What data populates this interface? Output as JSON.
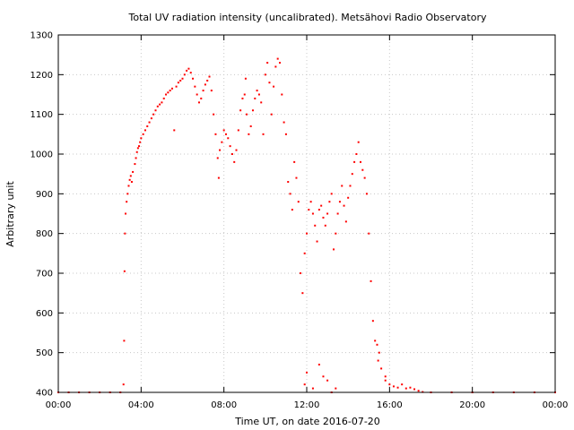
{
  "chart_data": {
    "type": "scatter",
    "title": "Total UV radiation intensity (uncalibrated). Metsähovi Radio Observatory",
    "xlabel": "Time UT, on date 2016-07-20",
    "ylabel": "Arbitrary unit",
    "x_unit": "hours UT",
    "xlim": [
      0,
      24
    ],
    "ylim": [
      400,
      1300
    ],
    "x_ticks": [
      {
        "value": 0,
        "label": "00:00"
      },
      {
        "value": 4,
        "label": "04:00"
      },
      {
        "value": 8,
        "label": "08:00"
      },
      {
        "value": 12,
        "label": "12:00"
      },
      {
        "value": 16,
        "label": "16:00"
      },
      {
        "value": 20,
        "label": "20:00"
      },
      {
        "value": 24,
        "label": "00:00"
      }
    ],
    "y_ticks": [
      400,
      500,
      600,
      700,
      800,
      900,
      1000,
      1100,
      1200,
      1300
    ],
    "grid": true,
    "marker_color": "#ff0000",
    "series": [
      {
        "points": [
          [
            0.0,
            400
          ],
          [
            0.5,
            400
          ],
          [
            1.0,
            400
          ],
          [
            1.5,
            400
          ],
          [
            2.0,
            400
          ],
          [
            2.5,
            400
          ],
          [
            3.0,
            400
          ],
          [
            3.15,
            420
          ],
          [
            3.18,
            530
          ],
          [
            3.2,
            705
          ],
          [
            3.22,
            800
          ],
          [
            3.25,
            850
          ],
          [
            3.3,
            880
          ],
          [
            3.35,
            900
          ],
          [
            3.4,
            920
          ],
          [
            3.45,
            935
          ],
          [
            3.5,
            945
          ],
          [
            3.55,
            930
          ],
          [
            3.6,
            955
          ],
          [
            3.7,
            975
          ],
          [
            3.75,
            990
          ],
          [
            3.8,
            1005
          ],
          [
            3.85,
            1015
          ],
          [
            3.9,
            1020
          ],
          [
            3.95,
            1030
          ],
          [
            4.0,
            1040
          ],
          [
            4.1,
            1050
          ],
          [
            4.2,
            1060
          ],
          [
            4.3,
            1070
          ],
          [
            4.4,
            1080
          ],
          [
            4.5,
            1090
          ],
          [
            4.6,
            1100
          ],
          [
            4.7,
            1110
          ],
          [
            4.8,
            1120
          ],
          [
            4.9,
            1125
          ],
          [
            5.0,
            1130
          ],
          [
            5.1,
            1140
          ],
          [
            5.2,
            1150
          ],
          [
            5.3,
            1155
          ],
          [
            5.4,
            1160
          ],
          [
            5.5,
            1165
          ],
          [
            5.6,
            1060
          ],
          [
            5.7,
            1170
          ],
          [
            5.8,
            1180
          ],
          [
            5.9,
            1185
          ],
          [
            6.0,
            1190
          ],
          [
            6.1,
            1200
          ],
          [
            6.2,
            1210
          ],
          [
            6.3,
            1215
          ],
          [
            6.4,
            1205
          ],
          [
            6.5,
            1190
          ],
          [
            6.6,
            1170
          ],
          [
            6.7,
            1150
          ],
          [
            6.8,
            1130
          ],
          [
            6.9,
            1140
          ],
          [
            7.0,
            1160
          ],
          [
            7.1,
            1175
          ],
          [
            7.2,
            1185
          ],
          [
            7.3,
            1195
          ],
          [
            7.4,
            1160
          ],
          [
            7.5,
            1100
          ],
          [
            7.6,
            1050
          ],
          [
            7.7,
            990
          ],
          [
            7.75,
            940
          ],
          [
            7.8,
            1010
          ],
          [
            7.9,
            1030
          ],
          [
            8.0,
            1060
          ],
          [
            8.1,
            1050
          ],
          [
            8.2,
            1040
          ],
          [
            8.3,
            1020
          ],
          [
            8.4,
            1000
          ],
          [
            8.5,
            980
          ],
          [
            8.6,
            1010
          ],
          [
            8.7,
            1060
          ],
          [
            8.8,
            1110
          ],
          [
            8.9,
            1140
          ],
          [
            9.0,
            1150
          ],
          [
            9.05,
            1190
          ],
          [
            9.1,
            1100
          ],
          [
            9.2,
            1050
          ],
          [
            9.3,
            1070
          ],
          [
            9.4,
            1110
          ],
          [
            9.5,
            1140
          ],
          [
            9.6,
            1160
          ],
          [
            9.7,
            1150
          ],
          [
            9.8,
            1130
          ],
          [
            9.9,
            1050
          ],
          [
            10.0,
            1200
          ],
          [
            10.1,
            1230
          ],
          [
            10.2,
            1180
          ],
          [
            10.3,
            1100
          ],
          [
            10.4,
            1170
          ],
          [
            10.5,
            1220
          ],
          [
            10.6,
            1240
          ],
          [
            10.7,
            1230
          ],
          [
            10.8,
            1150
          ],
          [
            10.9,
            1080
          ],
          [
            11.0,
            1050
          ],
          [
            11.1,
            930
          ],
          [
            11.2,
            900
          ],
          [
            11.3,
            860
          ],
          [
            11.4,
            980
          ],
          [
            11.5,
            940
          ],
          [
            11.6,
            880
          ],
          [
            11.7,
            700
          ],
          [
            11.8,
            650
          ],
          [
            11.9,
            750
          ],
          [
            12.0,
            800
          ],
          [
            12.1,
            860
          ],
          [
            12.2,
            880
          ],
          [
            12.3,
            850
          ],
          [
            12.4,
            820
          ],
          [
            12.5,
            780
          ],
          [
            12.6,
            860
          ],
          [
            12.7,
            870
          ],
          [
            12.8,
            840
          ],
          [
            12.9,
            820
          ],
          [
            13.0,
            850
          ],
          [
            13.1,
            880
          ],
          [
            13.2,
            900
          ],
          [
            13.3,
            760
          ],
          [
            13.4,
            800
          ],
          [
            13.5,
            850
          ],
          [
            13.6,
            880
          ],
          [
            13.7,
            920
          ],
          [
            13.8,
            870
          ],
          [
            13.9,
            830
          ],
          [
            14.0,
            890
          ],
          [
            14.1,
            920
          ],
          [
            14.2,
            950
          ],
          [
            14.3,
            980
          ],
          [
            14.4,
            1000
          ],
          [
            14.5,
            1030
          ],
          [
            14.6,
            980
          ],
          [
            14.7,
            960
          ],
          [
            14.8,
            940
          ],
          [
            14.9,
            900
          ],
          [
            15.0,
            800
          ],
          [
            15.1,
            680
          ],
          [
            15.2,
            580
          ],
          [
            15.3,
            530
          ],
          [
            15.4,
            520
          ],
          [
            15.5,
            500
          ],
          [
            15.6,
            460
          ],
          [
            15.8,
            430
          ],
          [
            16.0,
            420
          ],
          [
            16.2,
            415
          ],
          [
            16.4,
            412
          ],
          [
            16.6,
            420
          ],
          [
            16.8,
            410
          ],
          [
            17.0,
            412
          ],
          [
            17.2,
            408
          ],
          [
            17.4,
            404
          ],
          [
            17.6,
            401
          ],
          [
            18.0,
            400
          ],
          [
            19.0,
            400
          ],
          [
            20.0,
            400
          ],
          [
            21.0,
            400
          ],
          [
            22.0,
            400
          ],
          [
            23.0,
            400
          ],
          [
            24.0,
            400
          ],
          [
            12.0,
            450
          ],
          [
            12.3,
            410
          ],
          [
            12.6,
            470
          ],
          [
            13.0,
            430
          ],
          [
            13.4,
            410
          ],
          [
            11.9,
            420
          ],
          [
            12.8,
            440
          ],
          [
            13.2,
            400
          ],
          [
            15.45,
            480
          ],
          [
            15.8,
            440
          ]
        ]
      }
    ]
  }
}
